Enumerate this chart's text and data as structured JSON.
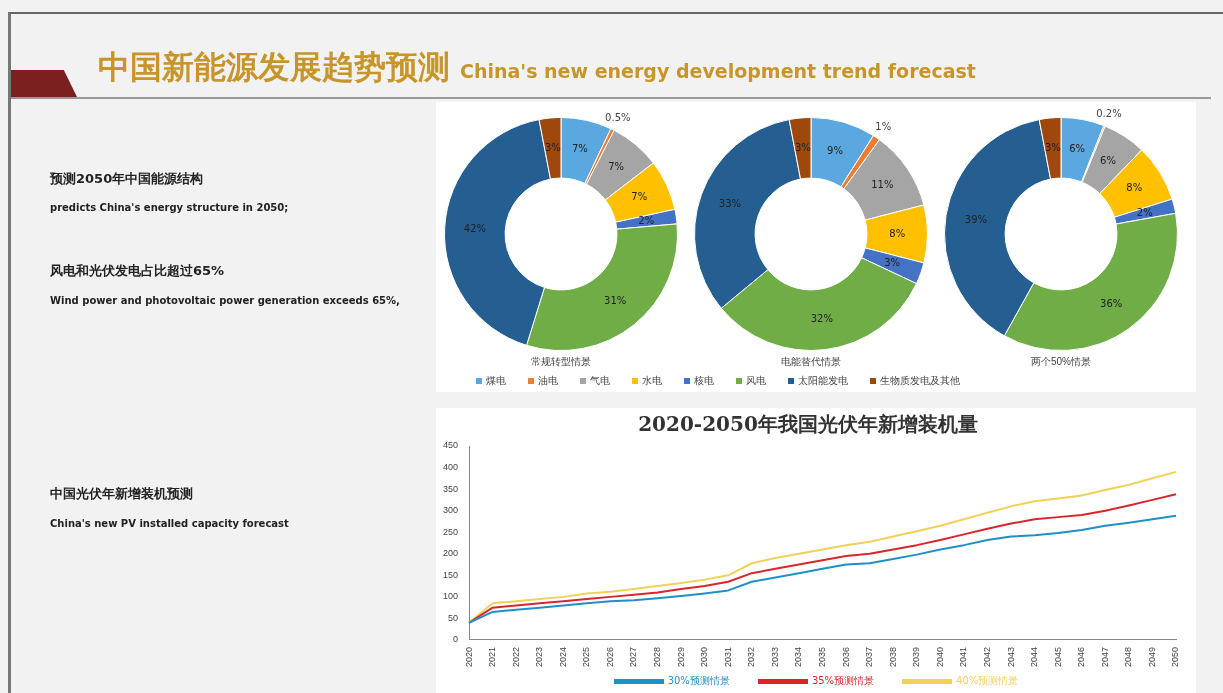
{
  "chart_data": [
    {
      "type": "other",
      "title": "中国新能源发展趋势预测",
      "subtitle": "China's new energy development trend forecast",
      "annotations": [
        "预测2050年中国能源结构",
        "predicts China's energy structure in 2050;",
        "风电和光伏发电占比超过65%",
        "Wind power and photovoltaic power generation exceeds 65%,",
        "中国光伏年新增装机预测",
        "China's new PV installed capacity forecast"
      ]
    },
    {
      "type": "donut",
      "title": "常规转型情景",
      "categories": [
        null,
        null,
        null,
        null,
        null,
        null,
        null,
        null
      ],
      "values": [
        7,
        0.5,
        7,
        7,
        2,
        31,
        42,
        3
      ],
      "value_labels": [
        "7%",
        "0.5%",
        "7%",
        "7%",
        "2%",
        "31%",
        "42%",
        "3%"
      ],
      "colors": [
        "#5ba8e0",
        "#ed7d31",
        "#a5a5a5",
        "#ffc000",
        "#4472c4",
        "#70ad47",
        "#255e91",
        "#9e480e"
      ]
    },
    {
      "type": "donut",
      "title": "电能替代情景",
      "categories": [
        "煤电",
        "油电",
        "气电",
        "水电",
        "核电",
        "风电",
        "太阳能发电",
        "生物质发电及其他"
      ],
      "values": [
        9,
        1,
        11,
        8,
        3,
        32,
        33,
        3
      ],
      "value_labels": [
        "9%",
        "1%",
        "11%",
        "8%",
        "3%",
        "32%",
        "33%",
        "3%"
      ],
      "colors": [
        "#5ba8e0",
        "#ed7d31",
        "#a5a5a5",
        "#ffc000",
        "#4472c4",
        "#70ad47",
        "#255e91",
        "#9e480e"
      ],
      "legend": "bottom"
    },
    {
      "type": "donut",
      "title": "两个50%情景",
      "categories": [
        null,
        null,
        null,
        null,
        null,
        null,
        null,
        null
      ],
      "values": [
        6,
        0.2,
        6,
        8,
        2,
        36,
        39,
        3
      ],
      "value_labels": [
        "6%",
        "0.2%",
        "6%",
        "8%",
        "2%",
        "36%",
        "39%",
        "3%"
      ],
      "colors": [
        "#5ba8e0",
        "#ed7d31",
        "#a5a5a5",
        "#ffc000",
        "#4472c4",
        "#70ad47",
        "#255e91",
        "#9e480e"
      ]
    },
    {
      "type": "line",
      "title": "2020-2050年我国光伏年新增装机量",
      "categories": [
        "2020",
        "2021",
        "2022",
        "2023",
        "2024",
        "2025",
        "2026",
        "2027",
        "2028",
        "2029",
        "2030",
        "2031",
        "2032",
        "2033",
        "2034",
        "2035",
        "2036",
        "2037",
        "2038",
        "2039",
        "2040",
        "2041",
        "2042",
        "2043",
        "2044",
        "2045",
        "2046",
        "2047",
        "2048",
        "2049",
        "2050"
      ],
      "ylim": [
        0,
        450
      ],
      "yticks": [
        0,
        50,
        100,
        150,
        200,
        250,
        300,
        350,
        400,
        450
      ],
      "grid": false,
      "legend": "bottom",
      "marker": "none",
      "series": [
        {
          "name": "30%预测情景",
          "color": "#1f8fc8",
          "values": [
            40,
            65,
            70,
            75,
            80,
            85,
            90,
            92,
            97,
            102,
            108,
            115,
            135,
            145,
            155,
            165,
            175,
            178,
            188,
            198,
            210,
            220,
            232,
            240,
            243,
            248,
            255,
            265,
            272,
            280,
            288
          ]
        },
        {
          "name": "35%预测情景",
          "color": "#d9262b",
          "values": [
            40,
            75,
            80,
            85,
            90,
            95,
            100,
            105,
            110,
            118,
            125,
            135,
            155,
            165,
            175,
            185,
            195,
            200,
            210,
            220,
            232,
            245,
            258,
            270,
            280,
            285,
            290,
            300,
            312,
            325,
            338
          ]
        },
        {
          "name": "40%预测情景",
          "color": "#f2d15a",
          "values": [
            40,
            85,
            90,
            95,
            100,
            108,
            112,
            118,
            125,
            132,
            140,
            150,
            178,
            190,
            200,
            210,
            220,
            228,
            240,
            252,
            265,
            280,
            295,
            310,
            322,
            328,
            335,
            348,
            360,
            375,
            390
          ]
        }
      ]
    }
  ]
}
